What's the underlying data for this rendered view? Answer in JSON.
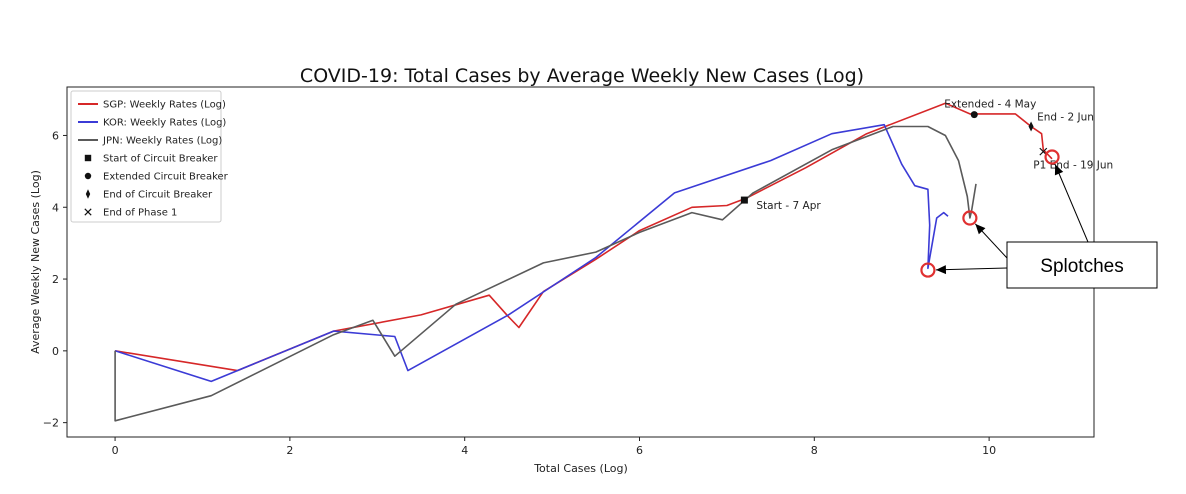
{
  "chart_data": {
    "type": "line",
    "title": "COVID-19: Total Cases by Average Weekly New Cases (Log)",
    "xlabel": "Total Cases (Log)",
    "ylabel": "Average Weekly New Cases (Log)",
    "xlim": [
      -0.55,
      11.2
    ],
    "ylim": [
      -2.4,
      7.35
    ],
    "x_ticks": [
      0,
      2,
      4,
      6,
      8,
      10
    ],
    "y_ticks": [
      -2,
      0,
      2,
      4,
      6
    ],
    "grid": false,
    "legend_position": "top-left",
    "legend": [
      {
        "label": "SGP: Weekly Rates (Log)",
        "kind": "line",
        "color": "#d62728"
      },
      {
        "label": "KOR: Weekly Rates (Log)",
        "kind": "line",
        "color": "#3b3bd6"
      },
      {
        "label": "JPN: Weekly Rates (Log)",
        "kind": "line",
        "color": "#5a5a5a"
      },
      {
        "label": "Start of Circuit Breaker",
        "kind": "marker",
        "marker": "square"
      },
      {
        "label": "Extended Circuit Breaker",
        "kind": "marker",
        "marker": "circle"
      },
      {
        "label": "End of Circuit Breaker",
        "kind": "marker",
        "marker": "diamond"
      },
      {
        "label": "End of Phase 1",
        "kind": "marker",
        "marker": "x"
      }
    ],
    "series": [
      {
        "name": "SGP: Weekly Rates (Log)",
        "color": "#d62728",
        "points": [
          [
            0,
            0
          ],
          [
            1.4,
            -0.55
          ],
          [
            2.5,
            0.55
          ],
          [
            3.5,
            1.0
          ],
          [
            4.28,
            1.55
          ],
          [
            4.5,
            0.95
          ],
          [
            4.62,
            0.65
          ],
          [
            4.9,
            1.65
          ],
          [
            5.5,
            2.55
          ],
          [
            6.0,
            3.35
          ],
          [
            6.6,
            4.0
          ],
          [
            7.0,
            4.05
          ],
          [
            7.22,
            4.25
          ],
          [
            7.9,
            5.1
          ],
          [
            8.6,
            6.05
          ],
          [
            9.5,
            6.9
          ],
          [
            9.78,
            6.6
          ],
          [
            10.0,
            6.6
          ],
          [
            10.3,
            6.6
          ],
          [
            10.48,
            6.25
          ],
          [
            10.6,
            6.05
          ],
          [
            10.62,
            5.6
          ],
          [
            10.72,
            5.35
          ]
        ]
      },
      {
        "name": "KOR: Weekly Rates (Log)",
        "color": "#3b3bd6",
        "points": [
          [
            0,
            0
          ],
          [
            1.1,
            -0.85
          ],
          [
            2.5,
            0.55
          ],
          [
            3.2,
            0.4
          ],
          [
            3.35,
            -0.55
          ],
          [
            4.5,
            1.0
          ],
          [
            5.5,
            2.6
          ],
          [
            6.4,
            4.4
          ],
          [
            7.5,
            5.3
          ],
          [
            8.2,
            6.05
          ],
          [
            8.8,
            6.3
          ],
          [
            9.0,
            5.2
          ],
          [
            9.15,
            4.6
          ],
          [
            9.3,
            4.5
          ],
          [
            9.32,
            3.5
          ],
          [
            9.3,
            2.3
          ],
          [
            9.35,
            3.0
          ],
          [
            9.4,
            3.7
          ],
          [
            9.48,
            3.85
          ],
          [
            9.53,
            3.75
          ]
        ]
      },
      {
        "name": "JPN: Weekly Rates (Log)",
        "color": "#5a5a5a",
        "points": [
          [
            0,
            0
          ],
          [
            0,
            -1.95
          ],
          [
            1.1,
            -1.25
          ],
          [
            2.5,
            0.45
          ],
          [
            2.95,
            0.85
          ],
          [
            3.2,
            -0.15
          ],
          [
            3.9,
            1.3
          ],
          [
            4.9,
            2.45
          ],
          [
            5.5,
            2.75
          ],
          [
            6.0,
            3.3
          ],
          [
            6.6,
            3.85
          ],
          [
            6.95,
            3.65
          ],
          [
            7.3,
            4.4
          ],
          [
            8.2,
            5.6
          ],
          [
            8.9,
            6.25
          ],
          [
            9.3,
            6.25
          ],
          [
            9.5,
            6.0
          ],
          [
            9.65,
            5.3
          ],
          [
            9.75,
            4.3
          ],
          [
            9.78,
            3.7
          ],
          [
            9.8,
            3.9
          ],
          [
            9.85,
            4.65
          ]
        ]
      }
    ],
    "events": [
      {
        "label": "Start - 7 Apr",
        "marker": "square",
        "x": 7.2,
        "y": 4.2
      },
      {
        "label": "Extended - 4 May",
        "marker": "circle",
        "x": 9.83,
        "y": 6.58
      },
      {
        "label": "End - 2 Jun",
        "marker": "diamond",
        "x": 10.48,
        "y": 6.25
      },
      {
        "label": "P1 End - 19 Jun",
        "marker": "x",
        "x": 10.62,
        "y": 5.55
      }
    ],
    "highlights": [
      {
        "x": 9.3,
        "y": 2.25
      },
      {
        "x": 9.78,
        "y": 3.7
      },
      {
        "x": 10.72,
        "y": 5.4
      }
    ],
    "callout": {
      "label": "Splotches"
    }
  }
}
